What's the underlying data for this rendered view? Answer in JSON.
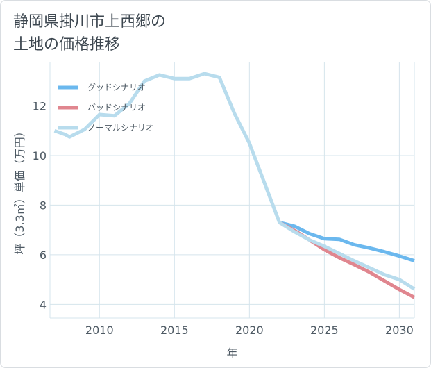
{
  "chart_data": {
    "type": "line",
    "title": "静岡県掛川市上西郷の土地の価格推移",
    "title_lines": [
      "静岡県掛川市上西郷の",
      "土地の価格推移"
    ],
    "xlabel": "年",
    "ylabel": "坪（3.3㎡）単価（万円）",
    "xlim": [
      2006.7,
      2031
    ],
    "ylim": [
      3.45,
      13.75
    ],
    "grid": true,
    "legend_position": "top-left",
    "x_ticks": [
      {
        "value": 2010,
        "label": "2010"
      },
      {
        "value": 2015,
        "label": "2015"
      },
      {
        "value": 2020,
        "label": "2020"
      },
      {
        "value": 2025,
        "label": "2025"
      },
      {
        "value": 2030,
        "label": "2030"
      }
    ],
    "y_ticks": [
      {
        "value": 4,
        "label": "4"
      },
      {
        "value": 6,
        "label": "6"
      },
      {
        "value": 8,
        "label": "8"
      },
      {
        "value": 10,
        "label": "10"
      },
      {
        "value": 12,
        "label": "12"
      }
    ],
    "series": [
      {
        "name": "グッドシナリオ",
        "color": "#6bb8ee",
        "x": [
          2022,
          2023,
          2024,
          2025,
          2026,
          2027,
          2028,
          2029,
          2030,
          2031
        ],
        "values": [
          7.3,
          7.15,
          6.85,
          6.65,
          6.62,
          6.4,
          6.27,
          6.12,
          5.95,
          5.76
        ]
      },
      {
        "name": "バッドシナリオ",
        "color": "#e0868f",
        "x": [
          2022,
          2023,
          2024,
          2025,
          2026,
          2027,
          2028,
          2029,
          2030,
          2031
        ],
        "values": [
          7.3,
          6.98,
          6.6,
          6.2,
          5.88,
          5.6,
          5.3,
          4.95,
          4.6,
          4.28
        ]
      },
      {
        "name": "ノーマルシナリオ",
        "color": "#b8dced",
        "x": [
          2007,
          2007.7,
          2008,
          2009,
          2010,
          2011,
          2012,
          2013,
          2014,
          2015,
          2016,
          2017,
          2018,
          2019,
          2020,
          2021,
          2022,
          2023,
          2024,
          2025,
          2026,
          2027,
          2028,
          2029,
          2030,
          2031
        ],
        "values": [
          11.0,
          10.85,
          10.75,
          11.05,
          11.65,
          11.6,
          12.1,
          13.0,
          13.25,
          13.1,
          13.1,
          13.3,
          13.15,
          11.7,
          10.5,
          8.9,
          7.3,
          6.93,
          6.6,
          6.34,
          6.05,
          5.75,
          5.48,
          5.2,
          5.0,
          4.62
        ]
      }
    ]
  }
}
